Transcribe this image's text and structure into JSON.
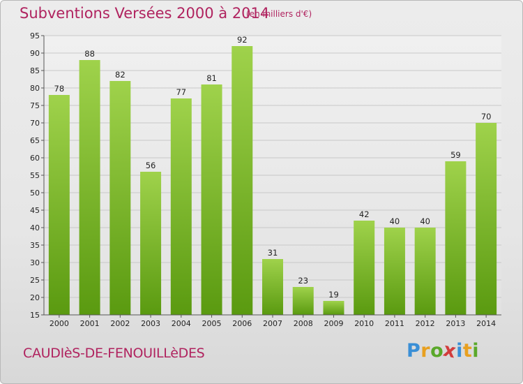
{
  "header": {
    "title": "Subventions Versées 2000 à 2014",
    "unit_note": "(en milliers d'€)"
  },
  "footer": {
    "commune": "CAUDIèS-DE-FENOUILLèDES",
    "logo": "Proxiti"
  },
  "colors": {
    "title": "#b0235f",
    "bar_light": "#9fd24b",
    "bar_dark": "#5a9a10",
    "logo_letters": [
      "#3a8fd6",
      "#e8a020",
      "#5aa82a",
      "#d23c3c",
      "#3a8fd6",
      "#e8a020",
      "#5aa82a"
    ]
  },
  "chart_data": {
    "type": "bar",
    "categories": [
      "2000",
      "2001",
      "2002",
      "2003",
      "2004",
      "2005",
      "2006",
      "2007",
      "2008",
      "2009",
      "2010",
      "2011",
      "2012",
      "2013",
      "2014"
    ],
    "values": [
      78,
      88,
      82,
      56,
      77,
      81,
      92,
      31,
      23,
      19,
      42,
      40,
      40,
      59,
      70
    ],
    "title": "Subventions Versées 2000 à 2014",
    "xlabel": "",
    "ylabel": "",
    "ylim": [
      15,
      95
    ],
    "yticks": [
      15,
      20,
      25,
      30,
      35,
      40,
      45,
      50,
      55,
      60,
      65,
      70,
      75,
      80,
      85,
      90,
      95
    ],
    "grid": true,
    "data_labels": true
  }
}
